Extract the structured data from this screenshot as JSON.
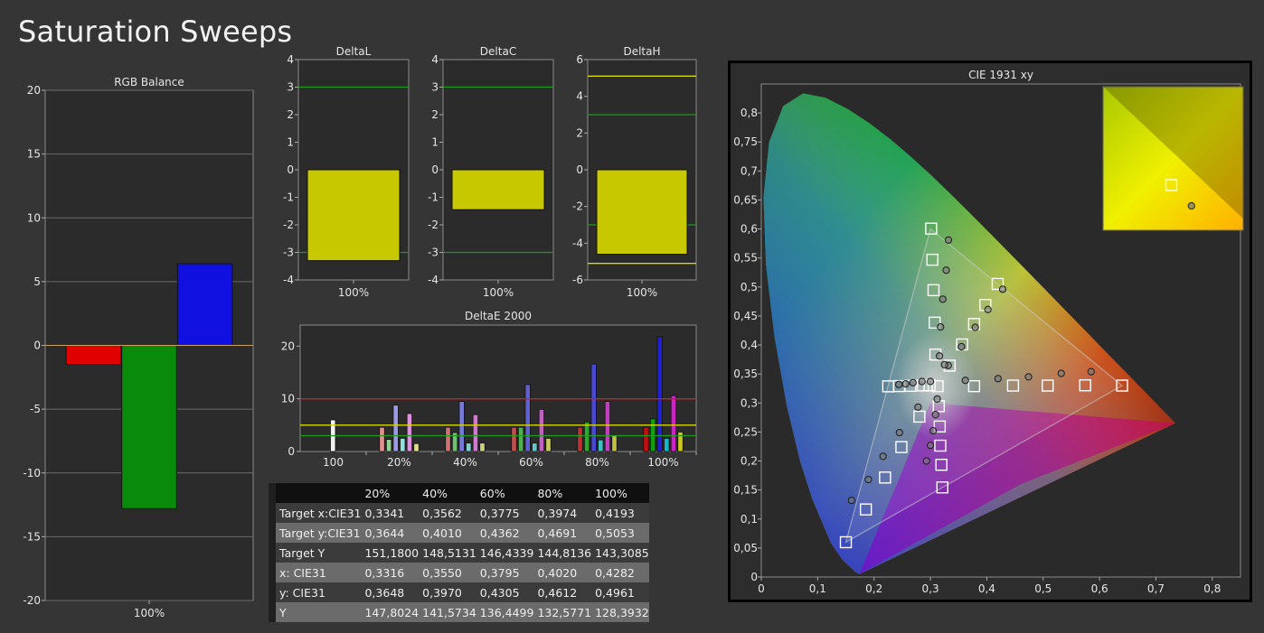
{
  "page": {
    "title": "Saturation Sweeps"
  },
  "colors": {
    "red": "#e00000",
    "green": "#0a8a0a",
    "blue": "#1010e0",
    "yellow": "#c8c800",
    "bg": "#353535",
    "plot_bg": "#2a2a2a"
  },
  "chart_data": [
    {
      "id": "rgb_balance",
      "type": "bar",
      "title": "RGB Balance",
      "categories": [
        "100%"
      ],
      "series": [
        {
          "name": "",
          "color": "#e00000",
          "values": [
            -1.5
          ]
        },
        {
          "name": "",
          "color": "#0a8a0a",
          "values": [
            -12.8
          ]
        },
        {
          "name": "",
          "color": "#1010e0",
          "values": [
            6.4
          ]
        }
      ],
      "ylim": [
        -20,
        20
      ],
      "yticks": [
        "20",
        "15",
        "10",
        "5",
        "0",
        "-5",
        "-10",
        "-15",
        "-20"
      ],
      "grid": true
    },
    {
      "id": "delta_l",
      "type": "bar",
      "title": "DeltaL",
      "categories": [
        "100%"
      ],
      "values": [
        -3.3
      ],
      "ylim": [
        -4,
        4
      ],
      "yticks": [
        "4",
        "3",
        "2",
        "1",
        "0",
        "-1",
        "-2",
        "-3",
        "-4"
      ],
      "reference_lines": [
        {
          "value": 3,
          "color": "#1f9a1f"
        },
        {
          "value": -3,
          "color": "#1f9a1f"
        }
      ]
    },
    {
      "id": "delta_c",
      "type": "bar",
      "title": "DeltaC",
      "categories": [
        "100%"
      ],
      "values": [
        -1.45
      ],
      "ylim": [
        -4,
        4
      ],
      "yticks": [
        "4",
        "3",
        "2",
        "1",
        "0",
        "-1",
        "-2",
        "-3",
        "-4"
      ],
      "reference_lines": [
        {
          "value": 3,
          "color": "#1f9a1f"
        },
        {
          "value": -3,
          "color": "#1f9a1f"
        }
      ]
    },
    {
      "id": "delta_h",
      "type": "bar",
      "title": "DeltaH",
      "categories": [
        "100%"
      ],
      "values": [
        -4.6
      ],
      "ylim": [
        -6,
        6
      ],
      "yticks": [
        "6",
        "4",
        "2",
        "0",
        "-2",
        "-4",
        "-6"
      ],
      "reference_lines": [
        {
          "value": 5.1,
          "color": "#d8d800"
        },
        {
          "value": 3,
          "color": "#1f9a1f"
        },
        {
          "value": -3,
          "color": "#1f9a1f"
        },
        {
          "value": -5.1,
          "color": "#d8d800"
        }
      ]
    },
    {
      "id": "delta_e",
      "type": "bar",
      "title": "DeltaE 2000",
      "categories": [
        "100",
        "20%",
        "40%",
        "60%",
        "80%",
        "100%"
      ],
      "ylim": [
        0,
        24
      ],
      "yticks": [
        "20",
        "10",
        "0"
      ],
      "groups": [
        [
          {
            "v": 6.0,
            "c": "#f2f2f2"
          }
        ],
        [
          {
            "v": 4.6,
            "c": "#e09090"
          },
          {
            "v": 2.3,
            "c": "#90d090"
          },
          {
            "v": 8.8,
            "c": "#9a9ae8"
          },
          {
            "v": 2.5,
            "c": "#90e0e0"
          },
          {
            "v": 7.2,
            "c": "#e090e0"
          },
          {
            "v": 1.5,
            "c": "#e0e090"
          }
        ],
        [
          {
            "v": 4.6,
            "c": "#d07070"
          },
          {
            "v": 3.6,
            "c": "#70c070"
          },
          {
            "v": 9.5,
            "c": "#7878d8"
          },
          {
            "v": 1.6,
            "c": "#80d0d0"
          },
          {
            "v": 7.0,
            "c": "#d078d0"
          },
          {
            "v": 1.6,
            "c": "#d0d080"
          }
        ],
        [
          {
            "v": 4.6,
            "c": "#c05050"
          },
          {
            "v": 4.6,
            "c": "#50b050"
          },
          {
            "v": 12.7,
            "c": "#6060d0"
          },
          {
            "v": 1.6,
            "c": "#60c8c8"
          },
          {
            "v": 8.0,
            "c": "#c060c0"
          },
          {
            "v": 2.5,
            "c": "#c8c860"
          }
        ],
        [
          {
            "v": 4.6,
            "c": "#c03030"
          },
          {
            "v": 5.6,
            "c": "#30a830"
          },
          {
            "v": 16.6,
            "c": "#4848d0"
          },
          {
            "v": 2.2,
            "c": "#40c0c0"
          },
          {
            "v": 9.5,
            "c": "#c040c0"
          },
          {
            "v": 3.0,
            "c": "#c0c040"
          }
        ],
        [
          {
            "v": 4.6,
            "c": "#c01010"
          },
          {
            "v": 6.2,
            "c": "#10a010"
          },
          {
            "v": 21.8,
            "c": "#2020d0"
          },
          {
            "v": 2.5,
            "c": "#10b8c8"
          },
          {
            "v": 10.6,
            "c": "#d020c8"
          },
          {
            "v": 3.7,
            "c": "#c8c820"
          }
        ]
      ],
      "reference_lines": [
        {
          "value": 10,
          "color": "#d02020"
        },
        {
          "value": 5,
          "color": "#d8d800"
        },
        {
          "value": 3,
          "color": "#1f9a1f"
        }
      ]
    },
    {
      "id": "cie_xy",
      "type": "scatter",
      "title": "CIE 1931 xy",
      "xlim": [
        0,
        0.85
      ],
      "ylim": [
        0,
        0.85
      ],
      "xticks": [
        "0",
        "0,1",
        "0,2",
        "0,3",
        "0,4",
        "0,5",
        "0,6",
        "0,7",
        "0,8"
      ],
      "yticks": [
        "0,8",
        "0,75",
        "0,7",
        "0,65",
        "0,6",
        "0,55",
        "0,5",
        "0,45",
        "0,4",
        "0,35",
        "0,3",
        "0,25",
        "0,2",
        "0,15",
        "0,1",
        "0,05",
        "0"
      ],
      "white_point": [
        0.3127,
        0.329
      ],
      "gamut": [
        [
          0.64,
          0.33
        ],
        [
          0.3,
          0.6
        ],
        [
          0.15,
          0.06
        ]
      ],
      "targets": [
        [
          0.3127,
          0.329
        ],
        [
          0.3013,
          0.6006
        ],
        [
          0.3035,
          0.547
        ],
        [
          0.3055,
          0.4945
        ],
        [
          0.3075,
          0.4385
        ],
        [
          0.3088,
          0.3835
        ],
        [
          0.64,
          0.33
        ],
        [
          0.5745,
          0.3305
        ],
        [
          0.508,
          0.33
        ],
        [
          0.4465,
          0.33
        ],
        [
          0.3775,
          0.329
        ],
        [
          0.15,
          0.06
        ],
        [
          0.1855,
          0.1165
        ],
        [
          0.2195,
          0.1715
        ],
        [
          0.2485,
          0.224
        ],
        [
          0.2805,
          0.2765
        ],
        [
          0.4193,
          0.5053
        ],
        [
          0.3974,
          0.4691
        ],
        [
          0.3775,
          0.4362
        ],
        [
          0.3562,
          0.401
        ],
        [
          0.3341,
          0.3644
        ],
        [
          0.2251,
          0.3287
        ],
        [
          0.2445,
          0.3291
        ],
        [
          0.2645,
          0.3295
        ],
        [
          0.2865,
          0.3303
        ],
        [
          0.2985,
          0.3305
        ],
        [
          0.3212,
          0.1545
        ],
        [
          0.3195,
          0.1935
        ],
        [
          0.3175,
          0.2265
        ],
        [
          0.3165,
          0.2595
        ],
        [
          0.3148,
          0.2945
        ]
      ],
      "measured": [
        [
          0.332,
          0.581
        ],
        [
          0.328,
          0.529
        ],
        [
          0.322,
          0.479
        ],
        [
          0.318,
          0.431
        ],
        [
          0.316,
          0.381
        ],
        [
          0.585,
          0.354
        ],
        [
          0.532,
          0.351
        ],
        [
          0.474,
          0.345
        ],
        [
          0.42,
          0.342
        ],
        [
          0.362,
          0.339
        ],
        [
          0.16,
          0.132
        ],
        [
          0.19,
          0.168
        ],
        [
          0.216,
          0.208
        ],
        [
          0.245,
          0.249
        ],
        [
          0.278,
          0.293
        ],
        [
          0.4282,
          0.4961
        ],
        [
          0.402,
          0.4612
        ],
        [
          0.3795,
          0.4305
        ],
        [
          0.355,
          0.397
        ],
        [
          0.3316,
          0.3648
        ],
        [
          0.244,
          0.332
        ],
        [
          0.256,
          0.333
        ],
        [
          0.269,
          0.335
        ],
        [
          0.285,
          0.337
        ],
        [
          0.3,
          0.337
        ],
        [
          0.293,
          0.2
        ],
        [
          0.3,
          0.227
        ],
        [
          0.305,
          0.252
        ],
        [
          0.309,
          0.28
        ],
        [
          0.312,
          0.307
        ],
        [
          0.325,
          0.366
        ]
      ],
      "inset": {
        "target": [
          0.4193,
          0.5053
        ],
        "measured": [
          0.4282,
          0.4961
        ]
      }
    }
  ],
  "table": {
    "columns": [
      "20%",
      "40%",
      "60%",
      "80%",
      "100%"
    ],
    "rows": [
      {
        "label": "Target x:CIE31",
        "values": [
          "0,3341",
          "0,3562",
          "0,3775",
          "0,3974",
          "0,4193"
        ]
      },
      {
        "label": "Target y:CIE31",
        "values": [
          "0,3644",
          "0,4010",
          "0,4362",
          "0,4691",
          "0,5053"
        ]
      },
      {
        "label": "Target Y",
        "values": [
          "151,1800",
          "148,5131",
          "146,4339",
          "144,8136",
          "143,3085"
        ]
      },
      {
        "label": "x: CIE31",
        "values": [
          "0,3316",
          "0,3550",
          "0,3795",
          "0,4020",
          "0,4282"
        ]
      },
      {
        "label": "y: CIE31",
        "values": [
          "0,3648",
          "0,3970",
          "0,4305",
          "0,4612",
          "0,4961"
        ]
      },
      {
        "label": "Y",
        "values": [
          "147,8024",
          "141,5734",
          "136,4499",
          "132,5771",
          "128,3932"
        ]
      }
    ]
  }
}
